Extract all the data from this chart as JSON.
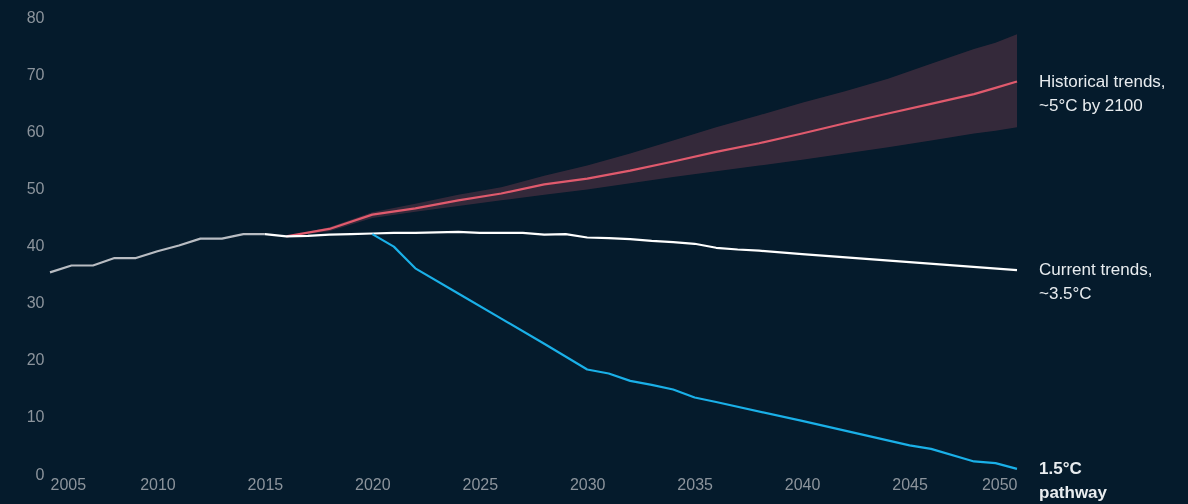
{
  "chart_data": {
    "type": "line",
    "xlim": [
      2005,
      2050
    ],
    "ylim": [
      0,
      80
    ],
    "xticks": [
      2005,
      2010,
      2015,
      2020,
      2025,
      2030,
      2035,
      2040,
      2045,
      2050
    ],
    "yticks": [
      0,
      10,
      20,
      30,
      40,
      50,
      60,
      70,
      80
    ],
    "grid": false,
    "marker": "none",
    "line_style": "solid",
    "series": [
      {
        "color": "#b8bcc2",
        "x": [
          2005,
          2006,
          2007,
          2008,
          2009,
          2010,
          2011,
          2012,
          2013,
          2014,
          2015
        ],
        "values": [
          35.3,
          36.5,
          36.5,
          37.8,
          37.8,
          39,
          40,
          41.2,
          41.2,
          42,
          42
        ]
      },
      {
        "name": "Historical trends,\n~5°C by 2100",
        "color": "#e05a6d",
        "x": [
          2016,
          2018,
          2020,
          2022,
          2024,
          2026,
          2028,
          2030,
          2032,
          2034,
          2036,
          2038,
          2040,
          2042,
          2044,
          2046,
          2048,
          2049,
          2050
        ],
        "values": [
          41.6,
          42.9,
          45.4,
          46.5,
          47.9,
          49.1,
          50.7,
          51.7,
          53.1,
          54.7,
          56.4,
          57.9,
          59.6,
          61.4,
          63.1,
          64.8,
          66.5,
          67.6,
          68.7
        ],
        "lower": [
          41.6,
          42.5,
          44.8,
          45.9,
          46.9,
          47.9,
          48.9,
          49.8,
          50.9,
          52,
          53,
          54,
          55,
          56.1,
          57.2,
          58.4,
          59.6,
          60.1,
          60.7
        ],
        "upper": [
          41.6,
          43.2,
          45.8,
          47.3,
          48.9,
          50.2,
          52.2,
          54,
          56.1,
          58.4,
          60.7,
          62.8,
          65,
          67,
          69.2,
          71.8,
          74.4,
          75.5,
          77
        ]
      },
      {
        "name": "Current trends,\n~3.5°C",
        "color": "#ffffff",
        "x": [
          2015,
          2016,
          2017,
          2018,
          2019,
          2020,
          2021,
          2022,
          2023,
          2024,
          2025,
          2026,
          2027,
          2028,
          2029,
          2030,
          2031,
          2032,
          2033,
          2034,
          2035,
          2036,
          2037,
          2038,
          2040,
          2045,
          2050
        ],
        "values": [
          42,
          41.6,
          41.7,
          41.9,
          42,
          42.1,
          42.2,
          42.2,
          42.3,
          42.4,
          42.2,
          42.2,
          42.2,
          41.9,
          42,
          41.4,
          41.3,
          41.1,
          40.8,
          40.6,
          40.3,
          39.6,
          39.3,
          39.1,
          38.5,
          37.1,
          35.7
        ]
      },
      {
        "name": "1.5°C\npathway",
        "color": "#1ab0e8",
        "x": [
          2020,
          2021,
          2022,
          2024,
          2026,
          2028,
          2030,
          2031,
          2032,
          2033,
          2034,
          2035,
          2036,
          2040,
          2045,
          2046,
          2048,
          2049,
          2050
        ],
        "values": [
          42,
          39.8,
          36,
          31.6,
          27.2,
          22.8,
          18.3,
          17.6,
          16.3,
          15.6,
          14.8,
          13.4,
          12.6,
          9.3,
          5,
          4.4,
          2.2,
          1.9,
          0.9
        ]
      }
    ]
  }
}
